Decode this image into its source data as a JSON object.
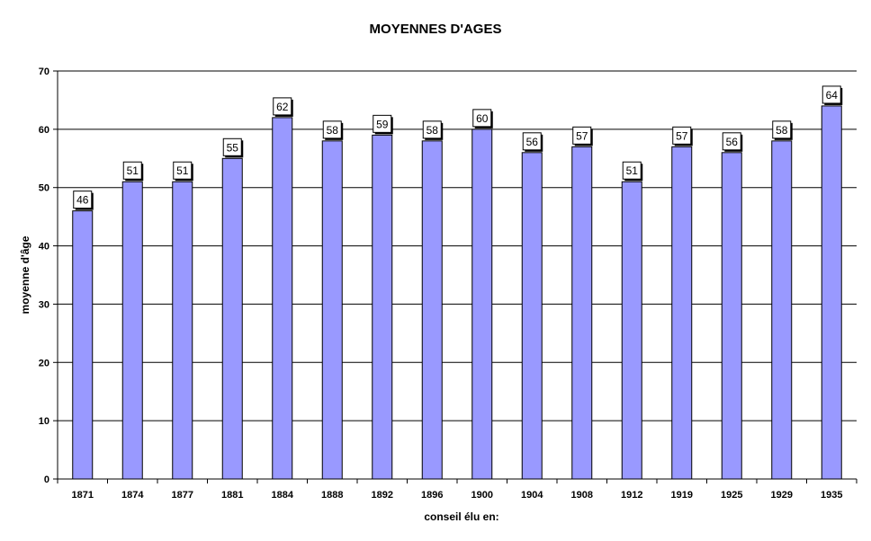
{
  "chart_data": {
    "type": "bar",
    "title": "MOYENNES D'AGES",
    "xlabel": "conseil élu en:",
    "ylabel": "moyenne d'âge",
    "categories": [
      "1871",
      "1874",
      "1877",
      "1881",
      "1884",
      "1888",
      "1892",
      "1896",
      "1900",
      "1904",
      "1908",
      "1912",
      "1919",
      "1925",
      "1929",
      "1935"
    ],
    "series": [
      {
        "values": [
          46,
          51,
          51,
          55,
          62,
          58,
          59,
          58,
          60,
          56,
          57,
          51,
          57,
          56,
          58,
          64
        ]
      }
    ],
    "ylim": [
      0,
      70
    ],
    "yticks": [
      0,
      10,
      20,
      30,
      40,
      50,
      60,
      70
    ],
    "grid": true,
    "data_labels": true,
    "colors": {
      "bar": "#9999ff",
      "bar_edge": "#000000",
      "grid": "#000000"
    }
  }
}
